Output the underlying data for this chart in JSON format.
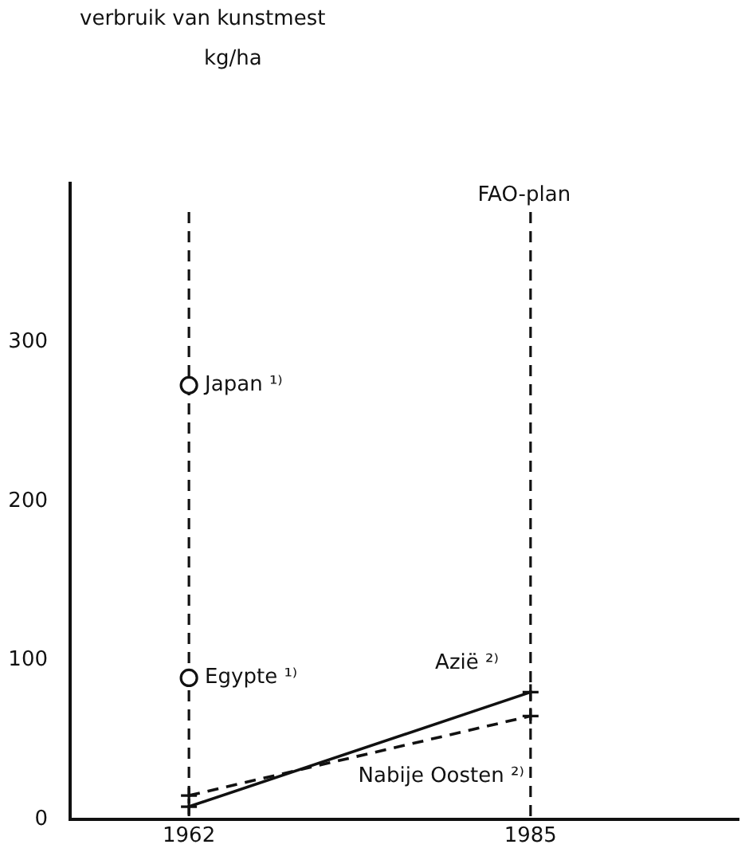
{
  "chart_data": {
    "type": "line",
    "title": "verbruik van kunstmest",
    "annotations": [
      "kg/ha"
    ],
    "x": [
      1962,
      1985
    ],
    "xlim": [
      1954,
      1999
    ],
    "xticks": [
      1962,
      1985
    ],
    "ylim": [
      0,
      400
    ],
    "yticks": [
      0,
      100,
      200,
      300
    ],
    "grid": false,
    "legend": false,
    "ref_lines": [
      {
        "axis": "x",
        "value": 1962,
        "label": null,
        "line_style": "dashed",
        "color": "#111111"
      },
      {
        "axis": "x",
        "value": 1985,
        "label": "FAO-plan",
        "line_style": "dashed",
        "color": "#111111"
      }
    ],
    "series": [
      {
        "name": "Japan ¹⁾",
        "type": "scatter",
        "marker": "circle",
        "color": "#111111",
        "values": [
          273,
          null
        ]
      },
      {
        "name": "Egypte ¹⁾",
        "type": "scatter",
        "marker": "circle",
        "color": "#111111",
        "values": [
          89,
          null
        ]
      },
      {
        "name": "Azië ²⁾",
        "marker": "cross",
        "line_style": "solid",
        "color": "#111111",
        "values": [
          8,
          80
        ]
      },
      {
        "name": "Nabije Oosten ²⁾",
        "marker": "cross",
        "line_style": "dashed",
        "color": "#111111",
        "values": [
          15,
          65
        ]
      }
    ]
  }
}
